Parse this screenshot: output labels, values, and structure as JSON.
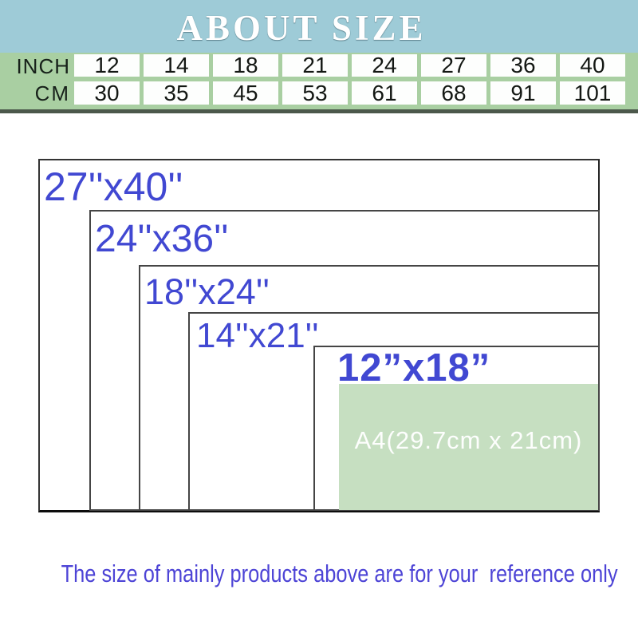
{
  "header": {
    "title": "ABOUT SIZE"
  },
  "size_table": {
    "row_labels": {
      "inch": "INCH",
      "cm": "CM"
    },
    "inch_values": [
      "12",
      "14",
      "18",
      "21",
      "24",
      "27",
      "36",
      "40"
    ],
    "cm_values": [
      "30",
      "35",
      "45",
      "53",
      "61",
      "68",
      "91",
      "101"
    ]
  },
  "diagram": {
    "sizes": [
      {
        "label": "27''x40''"
      },
      {
        "label": "24''x36''"
      },
      {
        "label": "18''x24''"
      },
      {
        "label": "14''x21''"
      },
      {
        "label": "12”x18”"
      }
    ],
    "a4_label": "A4(29.7cm x 21cm)"
  },
  "footer": {
    "note": "The size of mainly products above are for your  reference only"
  },
  "colors": {
    "header_bg": "#9ecbd7",
    "table_green": "#a9cfa2",
    "table_strip": "#4c584b",
    "a4_green": "#c6dfc1",
    "label_blue": "#4148d2",
    "footer_blue": "#4d44d6"
  }
}
